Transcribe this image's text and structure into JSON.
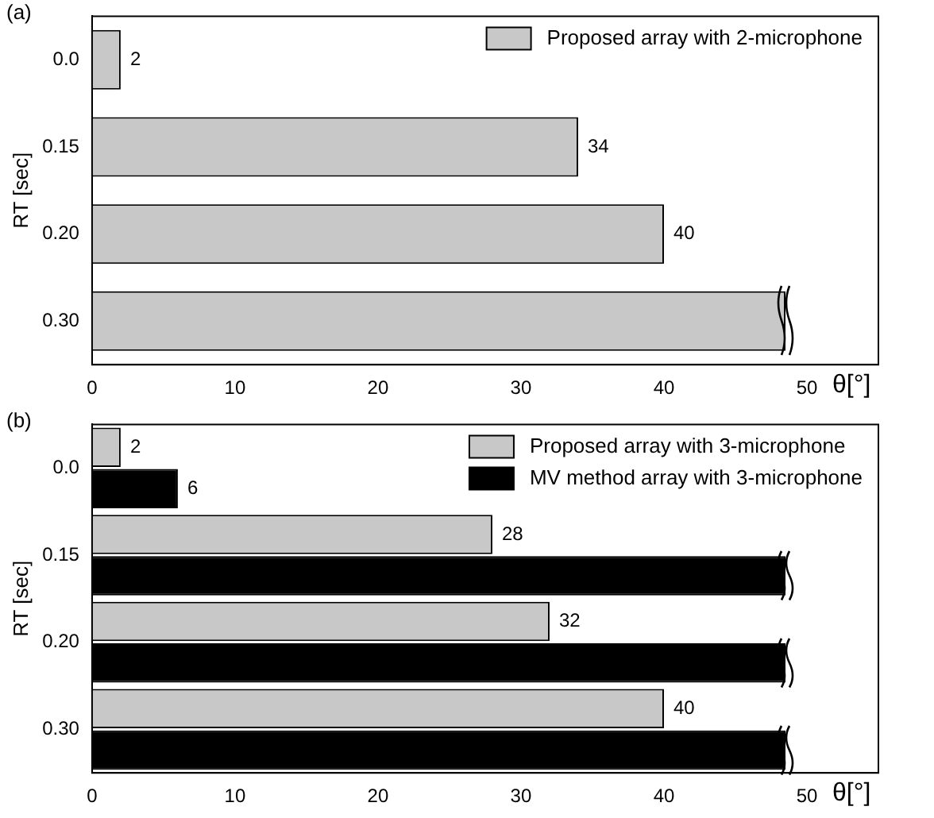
{
  "chart_data": [
    {
      "type": "bar",
      "title": "(a)",
      "orientation": "horizontal",
      "categories": [
        "0.0",
        "0.15",
        "0.20",
        "0.30"
      ],
      "ylabel": "RT [sec]",
      "xlabel": "θ[°]",
      "xlim": [
        0,
        55
      ],
      "xticks": [
        0,
        10,
        20,
        30,
        40,
        50
      ],
      "legend": "top right",
      "series": [
        {
          "name": "Proposed array with 2-microphone",
          "color": "#c8c8c8",
          "values": [
            2,
            34,
            40,
            48.5
          ],
          "value_labels": [
            "2",
            "34",
            "40",
            null
          ]
        }
      ]
    },
    {
      "type": "bar",
      "title": "(b)",
      "orientation": "horizontal",
      "categories": [
        "0.0",
        "0.15",
        "0.20",
        "0.30"
      ],
      "ylabel": "RT [sec]",
      "xlabel": "θ[°]",
      "xlim": [
        0,
        55
      ],
      "xticks": [
        0,
        10,
        20,
        30,
        40,
        50
      ],
      "legend": "top right",
      "series": [
        {
          "name": "Proposed array with 3-microphone",
          "color": "#c8c8c8",
          "values": [
            2,
            28,
            32,
            40
          ],
          "value_labels": [
            "2",
            "28",
            "32",
            "40"
          ]
        },
        {
          "name": "MV method array with 3-microphone",
          "color": "#000000",
          "values": [
            6,
            48.5,
            48.5,
            48.5
          ],
          "value_labels": [
            "6",
            null,
            null,
            null
          ]
        }
      ]
    }
  ]
}
